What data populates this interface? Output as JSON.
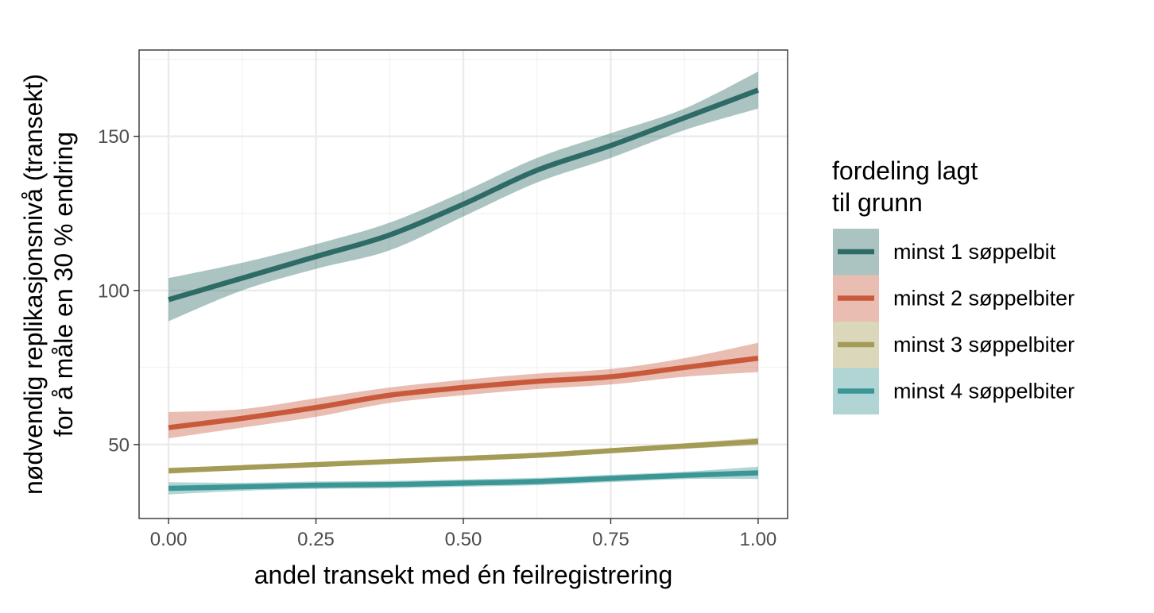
{
  "chart_data": {
    "type": "line",
    "xlabel": "andel transekt med én feilregistrering",
    "ylabel_lines": [
      "nødvendig replikasjonsnivå (transekt)",
      "for å måle en 30 % endring"
    ],
    "xlim": [
      -0.05,
      1.05
    ],
    "ylim": [
      26,
      178
    ],
    "x_ticks": [
      0,
      0.25,
      0.5,
      0.75,
      1
    ],
    "x_tick_labels": [
      "0.00",
      "0.25",
      "0.50",
      "0.75",
      "1.00"
    ],
    "y_ticks": [
      50,
      100,
      150
    ],
    "y_tick_labels": [
      "50",
      "100",
      "150"
    ],
    "grid": true,
    "legend": {
      "position": "right",
      "title_lines": [
        "fordeling lagt",
        "til grunn"
      ]
    },
    "x": [
      0,
      0.125,
      0.25,
      0.375,
      0.5,
      0.625,
      0.75,
      0.875,
      1.0
    ],
    "series": [
      {
        "name": "minst 1 søppelbit",
        "color": "#2e6b66",
        "band_color": "#a5c4c1",
        "values": [
          97,
          104,
          111,
          118,
          128,
          139,
          147,
          156,
          165
        ],
        "lower": [
          90,
          100,
          107,
          113,
          124,
          135,
          143,
          152,
          159
        ],
        "upper": [
          104,
          109,
          115,
          122,
          132,
          143,
          151,
          159,
          171
        ]
      },
      {
        "name": "minst 2 søppelbiter",
        "color": "#c85a3b",
        "band_color": "#eab8a8",
        "values": [
          55.5,
          58.5,
          62,
          66,
          68.5,
          70.5,
          72,
          75,
          78
        ],
        "lower": [
          52,
          55.5,
          59,
          63.5,
          66,
          68,
          69.5,
          72,
          73.5
        ],
        "upper": [
          60.5,
          61.5,
          65,
          68.5,
          71,
          73,
          74.5,
          78,
          83
        ]
      },
      {
        "name": "minst 3 søppelbiter",
        "color": "#a39b56",
        "band_color": "#dedbbf",
        "values": [
          41.5,
          42.5,
          43.5,
          44.5,
          45.5,
          46.5,
          48,
          49.5,
          51
        ],
        "lower": [
          40.5,
          41.8,
          42.8,
          43.8,
          44.8,
          45.8,
          47.2,
          48.6,
          49.8
        ],
        "upper": [
          42.5,
          43.2,
          44.2,
          45.2,
          46.2,
          47.2,
          48.8,
          50.4,
          52.2
        ]
      },
      {
        "name": "minst 4 søppelbiter",
        "color": "#3c9696",
        "band_color": "#a6d7d6",
        "values": [
          35.8,
          36.3,
          36.8,
          37,
          37.5,
          38,
          39,
          40,
          40.8
        ],
        "lower": [
          33.8,
          35.0,
          35.6,
          35.8,
          36.3,
          36.8,
          37.8,
          38.8,
          38.8
        ],
        "upper": [
          37.8,
          37.6,
          38.0,
          38.2,
          38.7,
          39.2,
          40.2,
          41.2,
          42.8
        ]
      }
    ]
  }
}
